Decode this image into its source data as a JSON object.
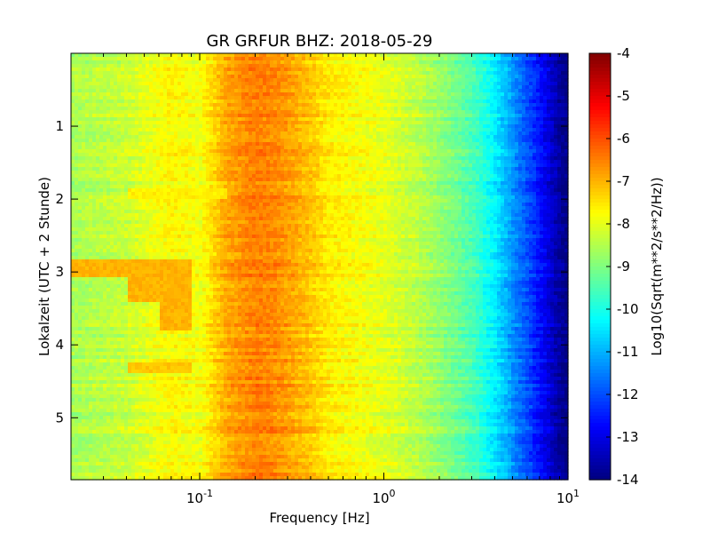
{
  "chart_data": {
    "type": "heatmap",
    "title": "GR GRFUR BHZ: 2018-05-29",
    "xlabel": "Frequency [Hz]",
    "ylabel": "Lokalzeit (UTC + 2 Stunde)",
    "xscale": "log",
    "xlim": [
      0.02,
      10
    ],
    "ylim": [
      5.85,
      0
    ],
    "x_ticks": [
      {
        "value": 0.1,
        "base": "10",
        "exp": "-1"
      },
      {
        "value": 1,
        "base": "10",
        "exp": "0"
      },
      {
        "value": 10,
        "base": "10",
        "exp": "1"
      }
    ],
    "y_ticks": [
      {
        "value": 1,
        "label": "1"
      },
      {
        "value": 2,
        "label": "2"
      },
      {
        "value": 3,
        "label": "3"
      },
      {
        "value": 4,
        "label": "4"
      },
      {
        "value": 5,
        "label": "5"
      }
    ],
    "colorbar": {
      "label": "Log10(Sqrt(m**2/s**2/Hz))",
      "range": [
        -14,
        -4
      ],
      "colormap": "jet",
      "ticks": [
        "-4",
        "-5",
        "-6",
        "-7",
        "-8",
        "-9",
        "-10",
        "-11",
        "-12",
        "-13",
        "-14"
      ]
    },
    "spectrum_profile": {
      "frequency_hz": [
        0.02,
        0.04,
        0.07,
        0.1,
        0.14,
        0.2,
        0.25,
        0.3,
        0.4,
        0.5,
        0.7,
        1.0,
        1.5,
        2.0,
        3.0,
        4.0,
        5.0,
        6.0,
        7.0,
        8.0,
        9.0,
        10.0
      ],
      "log10_asd": [
        -8.6,
        -8.3,
        -7.7,
        -7.9,
        -6.9,
        -6.5,
        -6.6,
        -6.8,
        -7.2,
        -7.6,
        -7.8,
        -8.0,
        -8.4,
        -8.8,
        -9.5,
        -10.4,
        -11.3,
        -12.0,
        -12.6,
        -13.2,
        -13.7,
        -14.0
      ]
    },
    "anomalies": [
      {
        "time_h": [
          2.85,
          3.05
        ],
        "frequency_hz": [
          0.02,
          0.09
        ],
        "log10_asd": -7.0
      },
      {
        "time_h": [
          2.95,
          3.4
        ],
        "frequency_hz": [
          0.04,
          0.09
        ],
        "log10_asd": -7.0
      },
      {
        "time_h": [
          3.35,
          3.8
        ],
        "frequency_hz": [
          0.06,
          0.09
        ],
        "log10_asd": -7.0
      },
      {
        "time_h": [
          4.25,
          4.4
        ],
        "frequency_hz": [
          0.04,
          0.09
        ],
        "log10_asd": -7.2
      },
      {
        "time_h": [
          1.85,
          2.0
        ],
        "frequency_hz": [
          0.04,
          0.14
        ],
        "log10_asd": -7.6
      }
    ]
  }
}
